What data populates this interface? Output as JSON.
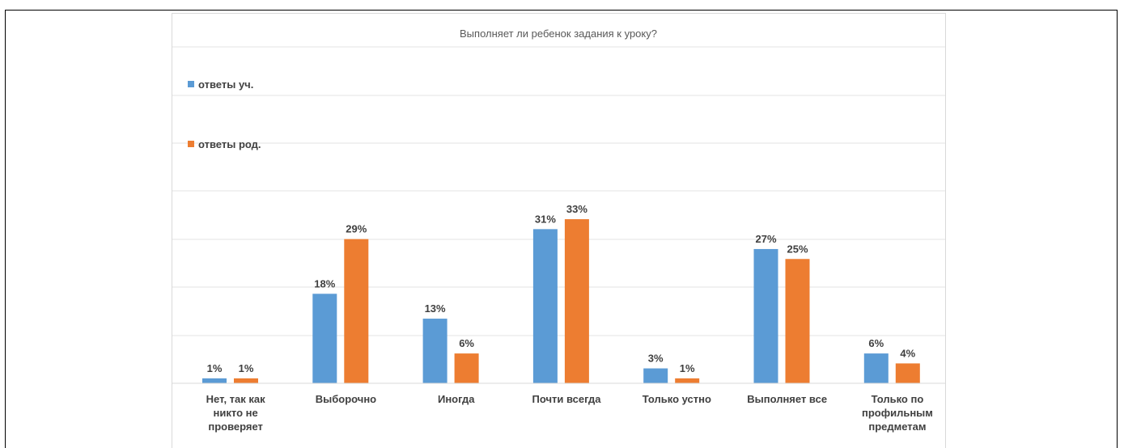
{
  "chart_data": {
    "type": "bar",
    "title": "Выполняет ли ребенок задания к уроку?",
    "categories": [
      [
        "Нет, так как",
        "никто не",
        "проверяет"
      ],
      [
        "Выборочно"
      ],
      [
        "Иногда"
      ],
      [
        "Почти всегда"
      ],
      [
        "Только устно"
      ],
      [
        "Выполняет все"
      ],
      [
        "Только по",
        "профильным",
        "предметам"
      ]
    ],
    "series": [
      {
        "name": "ответы уч.",
        "color": "#5b9bd5",
        "values": [
          1,
          18,
          13,
          31,
          3,
          27,
          6
        ]
      },
      {
        "name": "ответы род.",
        "color": "#ed7d31",
        "values": [
          1,
          29,
          6,
          33,
          1,
          25,
          4
        ]
      }
    ],
    "value_suffix": "%",
    "ylim": [
      0,
      35
    ],
    "grid": true,
    "legend_position": "top-left"
  }
}
